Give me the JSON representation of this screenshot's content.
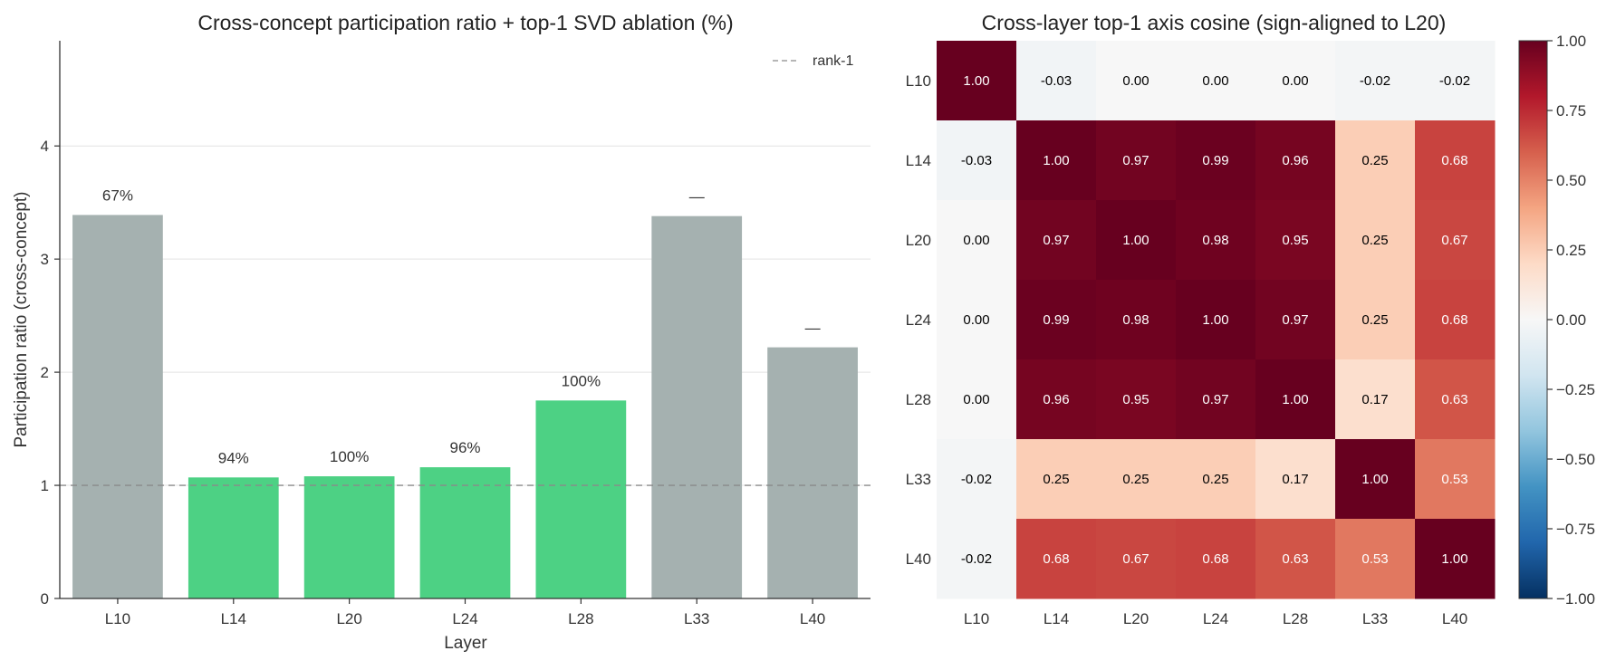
{
  "chart_data": [
    {
      "type": "bar",
      "title": "Cross-concept participation ratio + top-1 SVD ablation (%)",
      "xlabel": "Layer",
      "ylabel": "Participation ratio (cross-concept)",
      "categories": [
        "L10",
        "L14",
        "L20",
        "L24",
        "L28",
        "L33",
        "L40"
      ],
      "values": [
        3.39,
        1.07,
        1.08,
        1.16,
        1.75,
        3.38,
        2.22
      ],
      "bar_labels": [
        "67%",
        "94%",
        "100%",
        "96%",
        "100%",
        "—",
        "—"
      ],
      "bar_colors": [
        "#a5b1b0",
        "#4dd184",
        "#4dd184",
        "#4dd184",
        "#4dd184",
        "#a5b1b0",
        "#a5b1b0"
      ],
      "ylim": [
        0,
        4.93
      ],
      "yticks": [
        "0",
        "1",
        "2",
        "3",
        "4"
      ],
      "grid": true,
      "reference_line": {
        "y": 1,
        "label": "rank-1",
        "color": "#8a8a8a"
      },
      "legend": {
        "placement": "top-right",
        "entries": [
          "rank-1"
        ]
      }
    },
    {
      "type": "heatmap",
      "title": "Cross-layer top-1 axis cosine (sign-aligned to L20)",
      "rows": [
        "L10",
        "L14",
        "L20",
        "L24",
        "L28",
        "L33",
        "L40"
      ],
      "cols": [
        "L10",
        "L14",
        "L20",
        "L24",
        "L28",
        "L33",
        "L40"
      ],
      "values": [
        [
          1.0,
          -0.03,
          0.0,
          0.0,
          0.0,
          -0.02,
          -0.02
        ],
        [
          -0.03,
          1.0,
          0.97,
          0.99,
          0.96,
          0.25,
          0.68
        ],
        [
          0.0,
          0.97,
          1.0,
          0.98,
          0.95,
          0.25,
          0.67
        ],
        [
          0.0,
          0.99,
          0.98,
          1.0,
          0.97,
          0.25,
          0.68
        ],
        [
          0.0,
          0.96,
          0.95,
          0.97,
          1.0,
          0.17,
          0.63
        ],
        [
          -0.02,
          0.25,
          0.25,
          0.25,
          0.17,
          1.0,
          0.53
        ],
        [
          -0.02,
          0.68,
          0.67,
          0.68,
          0.63,
          0.53,
          1.0
        ]
      ],
      "cell_labels": [
        [
          "1.00",
          "-0.03",
          "0.00",
          "0.00",
          "0.00",
          "-0.02",
          "-0.02"
        ],
        [
          "-0.03",
          "1.00",
          "0.97",
          "0.99",
          "0.96",
          "0.25",
          "0.68"
        ],
        [
          "0.00",
          "0.97",
          "1.00",
          "0.98",
          "0.95",
          "0.25",
          "0.67"
        ],
        [
          "0.00",
          "0.99",
          "0.98",
          "1.00",
          "0.97",
          "0.25",
          "0.68"
        ],
        [
          "0.00",
          "0.96",
          "0.95",
          "0.97",
          "1.00",
          "0.17",
          "0.63"
        ],
        [
          "-0.02",
          "0.25",
          "0.25",
          "0.25",
          "0.17",
          "1.00",
          "0.53"
        ],
        [
          "-0.02",
          "0.68",
          "0.67",
          "0.68",
          "0.63",
          "0.53",
          "1.00"
        ]
      ],
      "colorscale": "RdBu_r",
      "vmin": -1.0,
      "vmax": 1.0,
      "colorbar_ticks": [
        "1.00",
        "0.75",
        "0.50",
        "0.25",
        "0.00",
        "−0.25",
        "−0.50",
        "−0.75",
        "−1.00"
      ]
    }
  ]
}
